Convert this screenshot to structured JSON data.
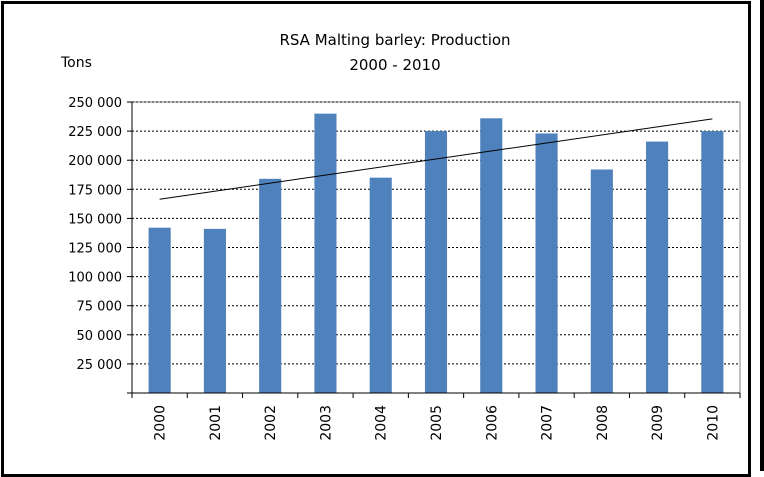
{
  "chart_data": {
    "type": "bar",
    "title": "RSA Malting barley: Production",
    "subtitle": "2000 - 2010",
    "ylabel": "Tons",
    "xlabel": "",
    "categories": [
      "2000",
      "2001",
      "2002",
      "2003",
      "2004",
      "2005",
      "2006",
      "2007",
      "2008",
      "2009",
      "2010"
    ],
    "values": [
      142000,
      141000,
      184000,
      240000,
      185000,
      225000,
      236000,
      223000,
      192000,
      216000,
      225000
    ],
    "ylim": [
      0,
      250000
    ],
    "yticks": [
      0,
      25000,
      50000,
      75000,
      100000,
      125000,
      150000,
      175000,
      200000,
      225000,
      250000
    ],
    "ytick_labels": [
      "",
      "25 000",
      "50 000",
      "75 000",
      "100 000",
      "125 000",
      "150 000",
      "175 000",
      "200 000",
      "225 000",
      "250 000"
    ],
    "trendline": {
      "type": "linear",
      "start": 166500,
      "end": 235500
    },
    "grid": true,
    "bar_color": "#4f81bd",
    "legend": "none"
  }
}
